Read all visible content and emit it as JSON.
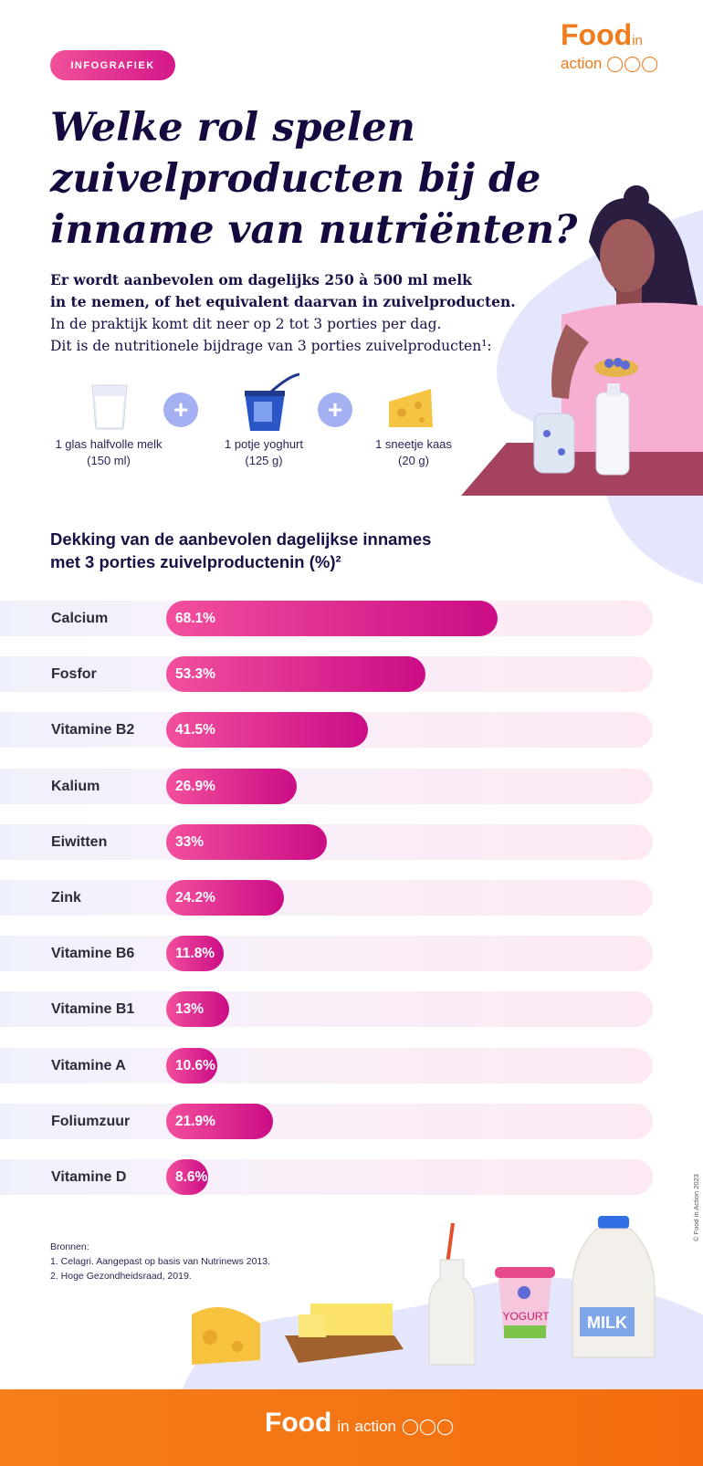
{
  "badge": "INFOGRAFIEK",
  "logo": {
    "word": "Food",
    "in": "in",
    "sub": "action"
  },
  "title": "Welke rol spelen zuivelproducten bij de inname van nutriënten?",
  "intro": {
    "bold_line1": "Er wordt aanbevolen om dagelijks 250 à 500 ml melk",
    "bold_line2": "in te nemen, of het equivalent daarvan in zuivelproducten.",
    "line3": "In de praktijk komt dit neer op 2 tot 3 porties per dag.",
    "line4": "Dit is de nutritionele bijdrage van 3 porties zuivelproducten¹:"
  },
  "portions": [
    {
      "name": "1 glas halfvolle melk",
      "amount": "(150 ml)",
      "icon": "milk-glass-icon"
    },
    {
      "name": "1 potje yoghurt",
      "amount": "(125 g)",
      "icon": "yoghurt-icon"
    },
    {
      "name": "1 sneetje kaas",
      "amount": "(20 g)",
      "icon": "cheese-icon"
    }
  ],
  "plus_symbol": "+",
  "chart_data": {
    "type": "bar",
    "orientation": "horizontal",
    "title": "Dekking van de aanbevolen dagelijkse innames met 3 porties zuivelproductenin (%)²",
    "title_line1": "Dekking van de aanbevolen dagelijkse innames",
    "title_line2": "met 3 porties zuivelproductenin (%)²",
    "xlim": [
      0,
      100
    ],
    "categories": [
      "Calcium",
      "Fosfor",
      "Vitamine B2",
      "Kalium",
      "Eiwitten",
      "Zink",
      "Vitamine B6",
      "Vitamine B1",
      "Vitamine A",
      "Foliumzuur",
      "Vitamine D"
    ],
    "values": [
      68.1,
      53.3,
      41.5,
      26.9,
      33,
      24.2,
      11.8,
      13,
      10.6,
      21.9,
      8.6
    ],
    "labels": [
      "68.1%",
      "53.3%",
      "41.5%",
      "26.9%",
      "33%",
      "24.2%",
      "11.8%",
      "13%",
      "10.6%",
      "21.9%",
      "8.6%"
    ],
    "bar_color_start": "#f24f9d",
    "bar_color_end": "#cb0c86",
    "track_color": "#fde9f3"
  },
  "sources": {
    "heading": "Bronnen:",
    "items": [
      "1. Celagri. Aangepast op basis van Nutrinews 2013.",
      "2. Hoge Gezondheidsraad, 2019."
    ]
  },
  "copyright": "© Food in Action 2023",
  "illustration_text": {
    "yoghurt": "YOGURT",
    "milk": "MILK"
  },
  "colors": {
    "navy": "#15093f",
    "pink": "#e0288f",
    "orange": "#f57f1a",
    "lavender": "#a4b0f2"
  }
}
